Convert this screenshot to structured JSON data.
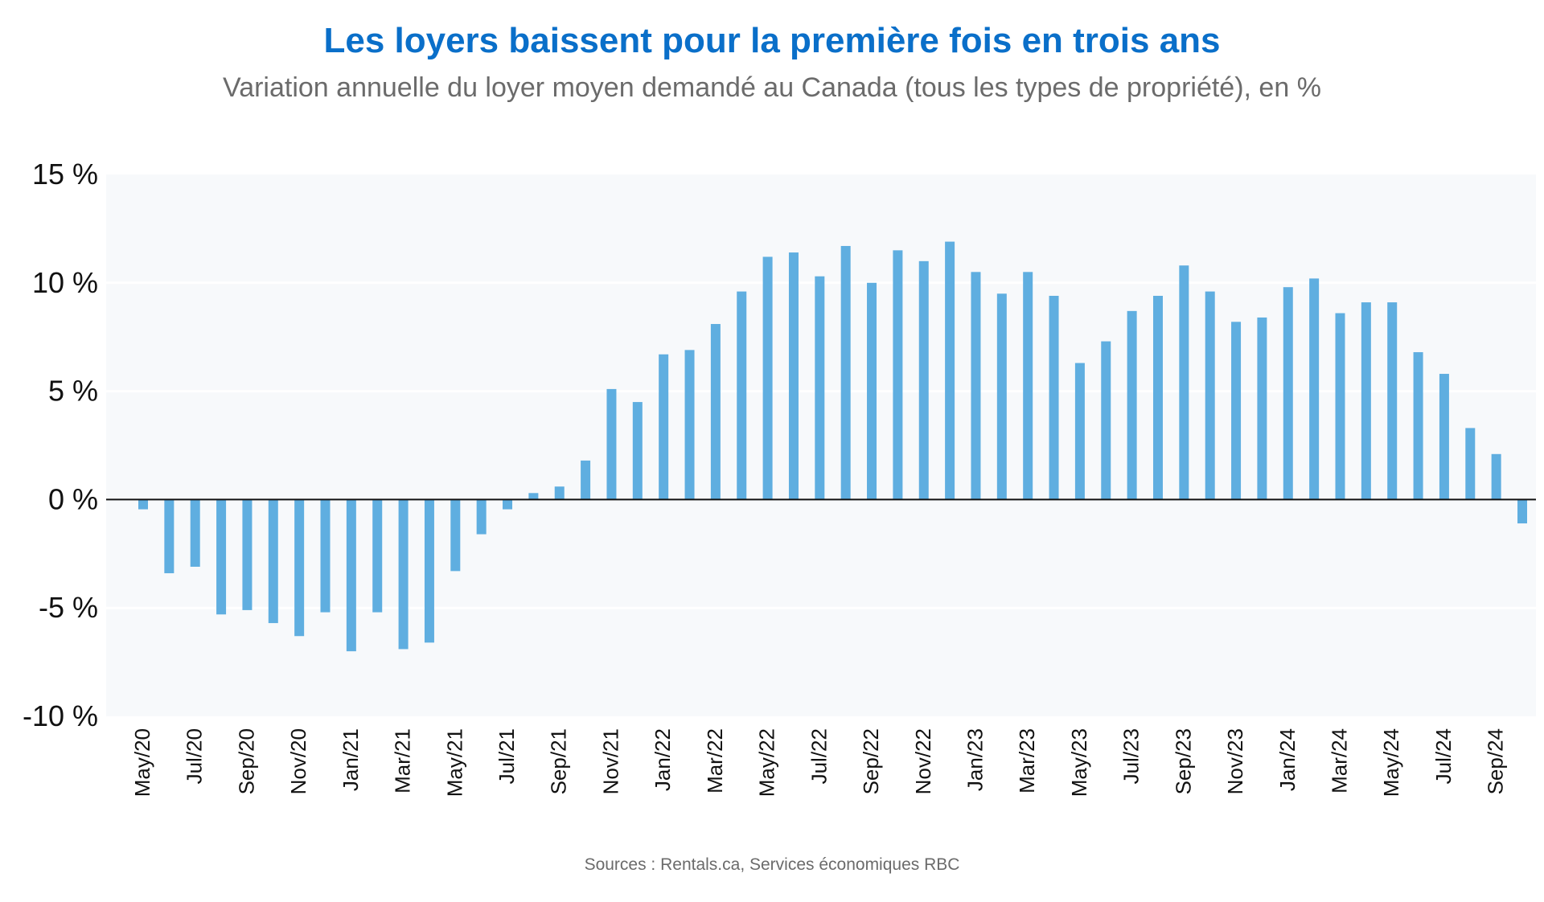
{
  "chart_data": {
    "type": "bar",
    "title": "Les loyers baissent pour la première fois en trois ans",
    "subtitle": "Variation annuelle du loyer moyen demandé au Canada (tous les types de propriété), en %",
    "source": "Sources : Rentals.ca, Services économiques RBC",
    "xlabel": "",
    "ylabel": "",
    "ylim": [
      -10,
      15
    ],
    "yticks": [
      -10,
      -5,
      0,
      5,
      10,
      15
    ],
    "ytick_labels": [
      "-10 %",
      "-5 %",
      "0 %",
      "5 %",
      "10 %",
      "15 %"
    ],
    "grid": true,
    "bar_color": "#5faee0",
    "categories": [
      "May/20",
      "Jun/20",
      "Jul/20",
      "Aug/20",
      "Sep/20",
      "Oct/20",
      "Nov/20",
      "Dec/20",
      "Jan/21",
      "Feb/21",
      "Mar/21",
      "Apr/21",
      "May/21",
      "Jun/21",
      "Jul/21",
      "Aug/21",
      "Sep/21",
      "Oct/21",
      "Nov/21",
      "Dec/21",
      "Jan/22",
      "Feb/22",
      "Mar/22",
      "Apr/22",
      "May/22",
      "Jun/22",
      "Jul/22",
      "Aug/22",
      "Sep/22",
      "Oct/22",
      "Nov/22",
      "Dec/22",
      "Jan/23",
      "Feb/23",
      "Mar/23",
      "Apr/23",
      "May/23",
      "Jun/23",
      "Jul/23",
      "Aug/23",
      "Sep/23",
      "Oct/23",
      "Nov/23",
      "Dec/23",
      "Jan/24",
      "Feb/24",
      "Mar/24",
      "Apr/24",
      "May/24",
      "Jun/24",
      "Jul/24",
      "Aug/24",
      "Sep/24",
      "Oct/24"
    ],
    "xtick_labels": [
      "May/20",
      "Jul/20",
      "Sep/20",
      "Nov/20",
      "Jan/21",
      "Mar/21",
      "May/21",
      "Jul/21",
      "Sep/21",
      "Nov/21",
      "Jan/22",
      "Mar/22",
      "May/22",
      "Jul/22",
      "Sep/22",
      "Nov/22",
      "Jan/23",
      "Mar/23",
      "May/23",
      "Jul/23",
      "Sep/23",
      "Nov/23",
      "Jan/24",
      "Mar/24",
      "May/24",
      "Jul/24",
      "Sep/24"
    ],
    "values": [
      -0.45,
      -3.4,
      -3.1,
      -5.3,
      -5.1,
      -5.7,
      -6.3,
      -5.2,
      -7.0,
      -5.2,
      -6.9,
      -6.6,
      -3.3,
      -1.6,
      -0.45,
      0.3,
      0.6,
      1.8,
      5.1,
      4.5,
      6.7,
      6.9,
      8.1,
      9.6,
      11.2,
      11.4,
      10.3,
      11.7,
      10.0,
      11.5,
      11.0,
      11.9,
      10.5,
      9.5,
      10.5,
      9.4,
      6.3,
      7.3,
      8.7,
      9.4,
      10.8,
      9.6,
      8.2,
      8.4,
      9.8,
      10.2,
      8.6,
      9.1,
      9.1,
      6.8,
      5.8,
      3.3,
      2.1,
      -1.1
    ]
  }
}
